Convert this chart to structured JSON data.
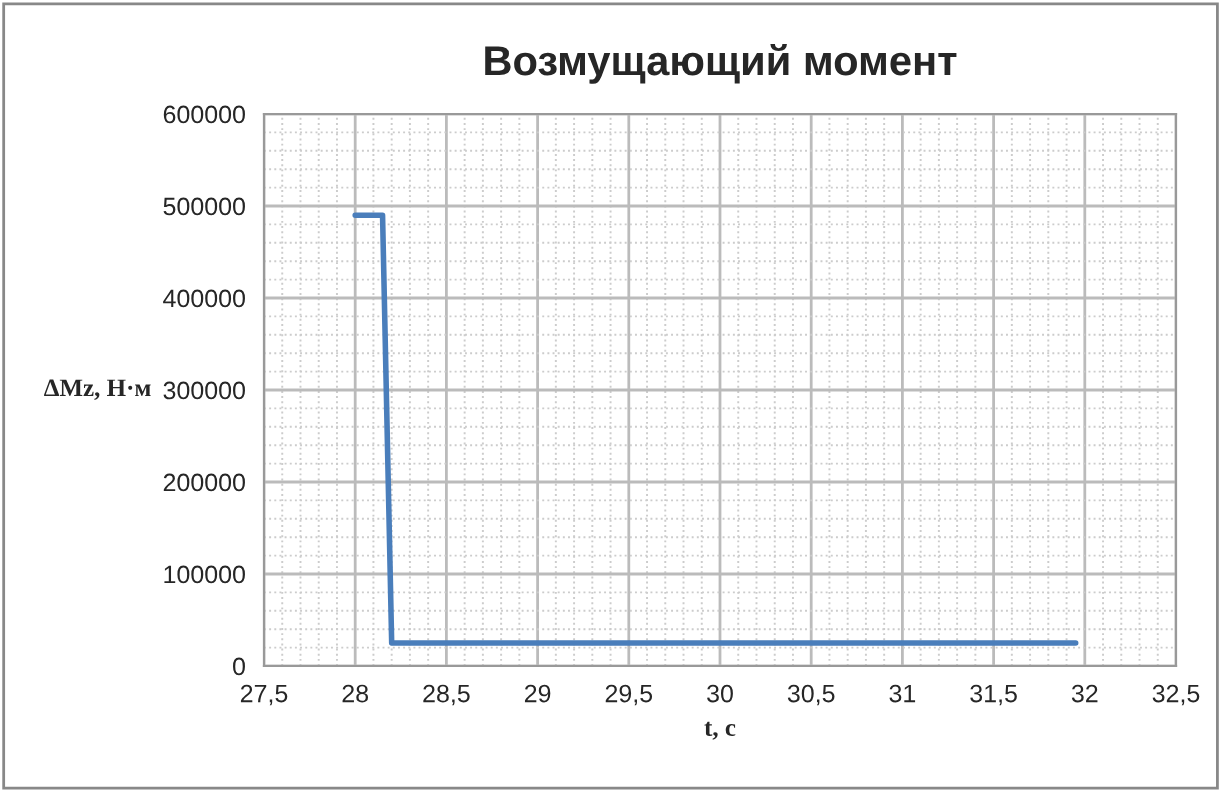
{
  "chart_data": {
    "type": "line",
    "title": "Возмущающий момент",
    "xlabel": "t, c",
    "ylabel": "ΔMz, Н·м",
    "x": [
      28,
      28.15,
      28.2,
      31.95
    ],
    "series": [
      {
        "color": "#4a7ebb",
        "values": [
          490000,
          490000,
          25000,
          25000
        ]
      }
    ],
    "xlim": [
      27.5,
      32.5
    ],
    "xticks": [
      {
        "value": 27.5,
        "label": "27,5"
      },
      28,
      {
        "value": 28.5,
        "label": "28,5"
      },
      29,
      {
        "value": 29.5,
        "label": "29,5"
      },
      30,
      {
        "value": 30.5,
        "label": "30,5"
      },
      31,
      {
        "value": 31.5,
        "label": "31,5"
      },
      32,
      {
        "value": 32.5,
        "label": "32,5"
      }
    ],
    "ylim": [
      0,
      600000
    ],
    "yticks": [
      0,
      100000,
      200000,
      300000,
      400000,
      500000,
      600000
    ],
    "grid": true,
    "marker": "none",
    "line_style": "solid"
  }
}
